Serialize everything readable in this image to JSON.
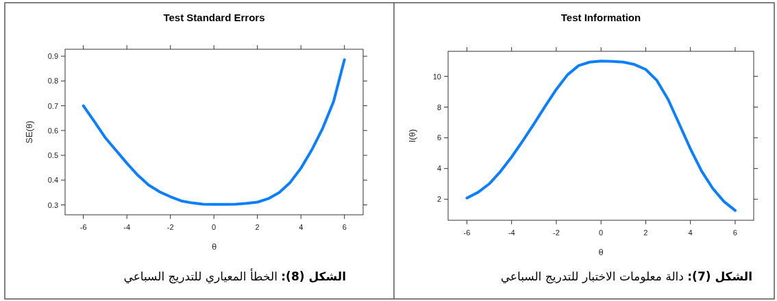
{
  "chart_data": [
    {
      "type": "line",
      "title": "Test Standard Errors",
      "xlabel": "θ",
      "ylabel": "SE(θ)",
      "annotations": [
        "**الشكل (8):** الخطأ المعياري للتدريج السباعي"
      ],
      "marker": "none",
      "line_style": "solid",
      "xlim": [
        -6.84,
        6.86
      ],
      "ylim": [
        0.26,
        0.928
      ],
      "xticks": [
        -6,
        -4,
        -2,
        0,
        2,
        4,
        6
      ],
      "yticks": [
        0.3,
        0.4,
        0.5,
        0.6,
        0.7,
        0.8,
        0.9
      ],
      "x": [
        -6,
        -5.5,
        -5,
        -4.5,
        -4,
        -3.5,
        -3,
        -2.5,
        -2,
        -1.5,
        -1,
        -0.5,
        0,
        0.5,
        1,
        1.5,
        2,
        2.5,
        3,
        3.5,
        4,
        4.5,
        5,
        5.5,
        6
      ],
      "series": [
        {
          "color": "#0a7fff",
          "values": [
            0.7,
            0.637,
            0.572,
            0.52,
            0.468,
            0.42,
            0.38,
            0.353,
            0.333,
            0.316,
            0.308,
            0.303,
            0.302,
            0.302,
            0.303,
            0.306,
            0.311,
            0.325,
            0.35,
            0.39,
            0.448,
            0.522,
            0.609,
            0.717,
            0.886
          ]
        }
      ]
    },
    {
      "type": "line",
      "title": "Test Information",
      "xlabel": "θ",
      "ylabel": "I(θ)",
      "annotations": [
        "**الشكل (7):** دالة معلومات الاختبار للتدريج السباعي"
      ],
      "marker": "none",
      "line_style": "solid",
      "xlim": [
        -6.84,
        6.83
      ],
      "ylim": [
        0.63,
        11.63
      ],
      "xticks": [
        -6,
        -4,
        -2,
        0,
        2,
        4,
        6
      ],
      "yticks": [
        2,
        4,
        6,
        8,
        10
      ],
      "x": [
        -6,
        -5.5,
        -5,
        -4.5,
        -4,
        -3.5,
        -3,
        -2.5,
        -2,
        -1.5,
        -1,
        -0.5,
        0,
        0.5,
        1,
        1.5,
        2,
        2.5,
        3,
        3.5,
        4,
        4.5,
        5,
        5.5,
        6
      ],
      "series": [
        {
          "color": "#0a7fff",
          "values": [
            2.08,
            2.45,
            3.0,
            3.8,
            4.75,
            5.8,
            6.9,
            8.05,
            9.15,
            10.1,
            10.7,
            10.93,
            11.0,
            10.97,
            10.93,
            10.77,
            10.45,
            9.73,
            8.5,
            6.9,
            5.28,
            3.83,
            2.7,
            1.85,
            1.27
          ]
        }
      ]
    }
  ]
}
